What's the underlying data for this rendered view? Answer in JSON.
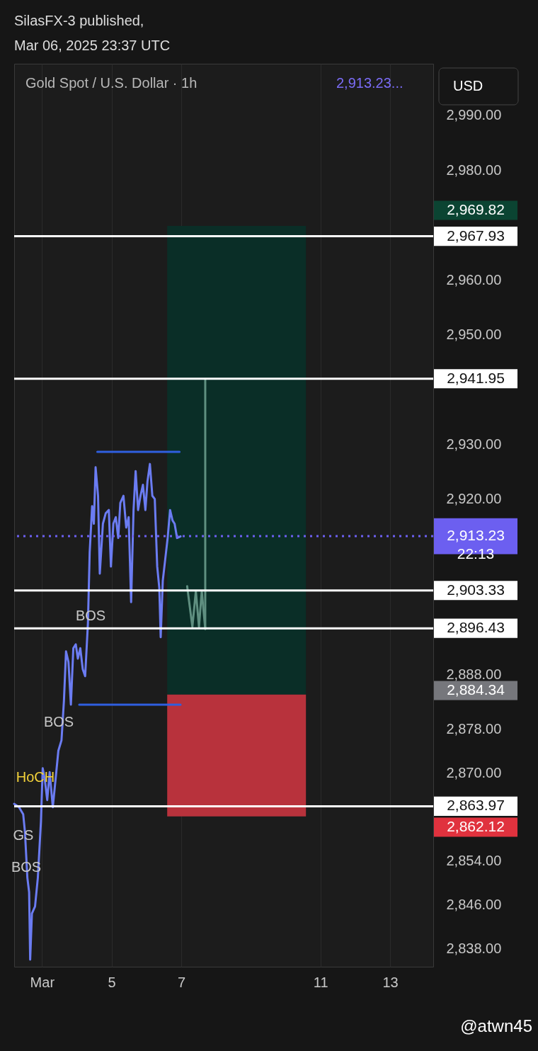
{
  "chart_data": {
    "type": "line",
    "title": "Gold Spot / U.S. Dollar · 1h",
    "subtitle": "2,913.23...",
    "xlim": [
      2.2,
      14.24
    ],
    "ylim": [
      2834.7,
      2999.4
    ],
    "xticks": [
      {
        "value": 3,
        "label": "Mar"
      },
      5,
      7,
      11,
      13
    ],
    "yticks": [
      {
        "value": 2838,
        "label": "2,838.00"
      },
      {
        "value": 2846,
        "label": "2,846.00"
      },
      {
        "value": 2854,
        "label": "2,854.00"
      },
      {
        "value": 2870,
        "label": "2,870.00"
      },
      {
        "value": 2878,
        "label": "2,878.00"
      },
      {
        "value": 2888,
        "label": "2,888.00"
      },
      {
        "value": 2920,
        "label": "2,920.00"
      },
      {
        "value": 2930,
        "label": "2,930.00"
      },
      {
        "value": 2950,
        "label": "2,950.00"
      },
      {
        "value": 2960,
        "label": "2,960.00"
      },
      {
        "value": 2980,
        "label": "2,980.00"
      },
      {
        "value": 2990,
        "label": "2,990.00"
      }
    ],
    "grid": "x",
    "marker": "none",
    "line_style": "solid",
    "series": [
      {
        "type": "bar",
        "color": "#0a2e27",
        "x": [
          8.59
        ],
        "base": [
          2884.34
        ],
        "values": [
          85.48
        ]
      },
      {
        "type": "bar",
        "color": "#b8323c",
        "x": [
          8.59
        ],
        "base": [
          2862.12
        ],
        "values": [
          22.22
        ]
      },
      {
        "color": "#6b7cf2",
        "x": [
          2.2,
          2.34,
          2.46,
          2.51,
          2.58,
          2.63,
          2.66,
          2.71,
          2.8,
          2.88,
          2.97,
          3.02,
          3.08,
          3.15,
          3.22,
          3.31,
          3.39,
          3.47,
          3.56,
          3.63,
          3.69,
          3.76,
          3.83,
          3.9,
          3.97,
          4.03,
          4.1,
          4.17,
          4.24,
          4.32,
          4.37,
          4.44,
          4.49,
          4.54,
          4.61,
          4.66,
          4.75,
          4.83,
          4.92,
          4.98,
          5.05,
          5.12,
          5.19,
          5.25,
          5.34,
          5.42,
          5.49,
          5.56,
          5.63,
          5.69,
          5.76,
          5.83,
          5.9,
          5.97,
          6.03,
          6.1,
          6.17,
          6.24,
          6.31,
          6.37,
          6.41,
          6.47,
          6.54,
          6.61,
          6.68,
          6.75,
          6.81,
          6.88,
          6.98
        ],
        "values": [
          2864.4,
          2863.8,
          2862.5,
          2859.3,
          2850.9,
          2848.3,
          2836.0,
          2844.4,
          2845.7,
          2850.9,
          2861.2,
          2870.9,
          2868.9,
          2865.1,
          2870.2,
          2863.8,
          2868.9,
          2874.1,
          2876.0,
          2883.2,
          2892.2,
          2890.3,
          2882.5,
          2892.8,
          2893.5,
          2890.9,
          2892.8,
          2889.0,
          2887.7,
          2897.4,
          2910.3,
          2918.7,
          2915.5,
          2925.8,
          2920.6,
          2906.4,
          2915.5,
          2917.4,
          2918.0,
          2907.7,
          2915.5,
          2916.7,
          2912.9,
          2919.3,
          2920.6,
          2914.8,
          2916.7,
          2901.2,
          2918.0,
          2925.1,
          2918.0,
          2920.6,
          2922.6,
          2918.0,
          2923.2,
          2926.4,
          2920.6,
          2920.0,
          2907.7,
          2903.8,
          2894.8,
          2905.1,
          2909.0,
          2912.9,
          2918.0,
          2916.1,
          2915.5,
          2912.9,
          2913.2
        ]
      },
      {
        "color": "#2f5fe0",
        "x": [
          4.59,
          6.95
        ],
        "values": [
          2928.6,
          2928.6
        ]
      },
      {
        "color": "#2f5fe0",
        "x": [
          4.07,
          6.98
        ],
        "values": [
          2882.5,
          2882.5
        ]
      },
      {
        "color": "#5f8f80",
        "x": [
          7.17,
          7.32,
          7.42,
          7.51,
          7.59,
          7.69
        ],
        "values": [
          2904.1,
          2896.7,
          2903.2,
          2896.7,
          2903.2,
          2896.3
        ]
      },
      {
        "color": "#5f8f80",
        "x": [
          7.69,
          7.69
        ],
        "values": [
          2896.4,
          2941.7
        ]
      }
    ],
    "ref_lines": [
      {
        "axis": "y",
        "value": 2967.93,
        "label": "2,967.93",
        "color": "#ffffff"
      },
      {
        "axis": "y",
        "value": 2941.95,
        "label": "2,941.95",
        "color": "#ffffff"
      },
      {
        "axis": "y",
        "value": 2913.23,
        "label": "2,913.23\n22:13",
        "color": "#6c5ff0",
        "line_style": "dotted"
      },
      {
        "axis": "y",
        "value": 2903.33,
        "label": "2,903.33",
        "color": "#ffffff"
      },
      {
        "axis": "y",
        "value": 2896.43,
        "label": "2,896.43",
        "color": "#ffffff"
      },
      {
        "axis": "y",
        "value": 2863.97,
        "label": "2,863.97",
        "color": "#ffffff"
      }
    ],
    "annotations": [
      "SilasFX-3 published,",
      "Mar 06, 2025 23:37 UTC",
      "USD",
      "@atwn45",
      "2,969.82",
      "2,884.34",
      "2,862.12",
      "BOS",
      "BOS",
      "HoCH",
      "GS",
      "BOS"
    ]
  }
}
